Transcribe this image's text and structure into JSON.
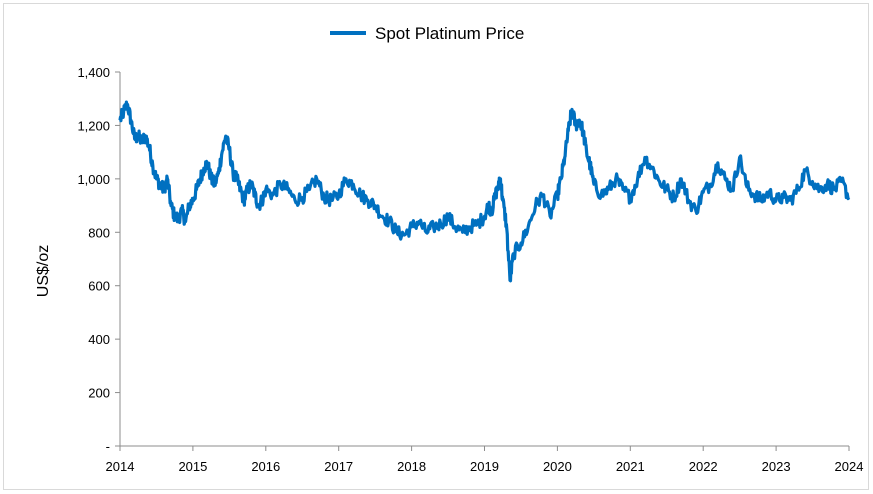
{
  "chart_data": {
    "type": "line",
    "title": "",
    "xlabel": "",
    "ylabel": "US$/oz",
    "xlim": [
      "2014",
      "2024"
    ],
    "ylim": [
      0,
      1400
    ],
    "y_ticks": [
      "-",
      "200",
      "400",
      "600",
      "800",
      "1,000",
      "1,200",
      "1,400"
    ],
    "x_ticks": [
      "2014",
      "2015",
      "2016",
      "2017",
      "2018",
      "2019",
      "2020",
      "2021",
      "2022",
      "2023",
      "2024"
    ],
    "legend_position": "top-center",
    "grid": false,
    "series": [
      {
        "name": "Spot Platinum Price",
        "color": "#0070C0",
        "x": [
          2014.0,
          2014.05,
          2014.1,
          2014.15,
          2014.2,
          2014.25,
          2014.3,
          2014.35,
          2014.4,
          2014.45,
          2014.5,
          2014.55,
          2014.6,
          2014.65,
          2014.7,
          2014.75,
          2014.8,
          2014.85,
          2014.9,
          2014.95,
          2015.0,
          2015.05,
          2015.1,
          2015.15,
          2015.2,
          2015.25,
          2015.3,
          2015.35,
          2015.4,
          2015.45,
          2015.5,
          2015.55,
          2015.6,
          2015.65,
          2015.7,
          2015.75,
          2015.8,
          2015.85,
          2015.9,
          2015.95,
          2016.0,
          2016.1,
          2016.2,
          2016.3,
          2016.4,
          2016.5,
          2016.6,
          2016.7,
          2016.8,
          2016.9,
          2017.0,
          2017.1,
          2017.2,
          2017.3,
          2017.4,
          2017.5,
          2017.6,
          2017.7,
          2017.8,
          2017.9,
          2018.0,
          2018.1,
          2018.2,
          2018.3,
          2018.4,
          2018.5,
          2018.6,
          2018.7,
          2018.8,
          2018.9,
          2019.0,
          2019.05,
          2019.1,
          2019.15,
          2019.2,
          2019.22,
          2019.25,
          2019.3,
          2019.35,
          2019.4,
          2019.5,
          2019.6,
          2019.7,
          2019.8,
          2019.9,
          2020.0,
          2020.05,
          2020.1,
          2020.15,
          2020.2,
          2020.25,
          2020.3,
          2020.35,
          2020.4,
          2020.45,
          2020.5,
          2020.6,
          2020.7,
          2020.8,
          2020.9,
          2021.0,
          2021.1,
          2021.2,
          2021.3,
          2021.4,
          2021.5,
          2021.6,
          2021.7,
          2021.8,
          2021.9,
          2022.0,
          2022.1,
          2022.2,
          2022.3,
          2022.4,
          2022.5,
          2022.6,
          2022.7,
          2022.8,
          2022.9,
          2023.0,
          2023.1,
          2023.2,
          2023.3,
          2023.4,
          2023.5,
          2023.6,
          2023.7,
          2023.8,
          2023.9,
          2024.0
        ],
        "values": [
          1220,
          1250,
          1280,
          1220,
          1150,
          1160,
          1140,
          1160,
          1120,
          1050,
          1000,
          980,
          960,
          1000,
          900,
          860,
          850,
          880,
          840,
          900,
          920,
          960,
          1000,
          1040,
          1060,
          1000,
          980,
          1020,
          1100,
          1160,
          1110,
          1020,
          1000,
          960,
          920,
          960,
          980,
          940,
          900,
          920,
          960,
          940,
          980,
          960,
          920,
          930,
          960,
          1000,
          930,
          920,
          940,
          1000,
          980,
          940,
          920,
          900,
          860,
          840,
          800,
          790,
          820,
          840,
          800,
          820,
          830,
          860,
          820,
          800,
          820,
          830,
          860,
          900,
          880,
          940,
          980,
          1000,
          920,
          830,
          620,
          720,
          760,
          820,
          900,
          940,
          860,
          940,
          1000,
          1080,
          1180,
          1260,
          1200,
          1220,
          1180,
          1100,
          1050,
          980,
          940,
          960,
          1000,
          960,
          930,
          1000,
          1080,
          1040,
          990,
          960,
          930,
          1000,
          920,
          880,
          950,
          980,
          1060,
          1000,
          960,
          1080,
          970,
          940,
          920,
          950,
          920,
          930,
          920,
          960,
          1030,
          990,
          960,
          980,
          960,
          990,
          930
        ]
      }
    ]
  }
}
